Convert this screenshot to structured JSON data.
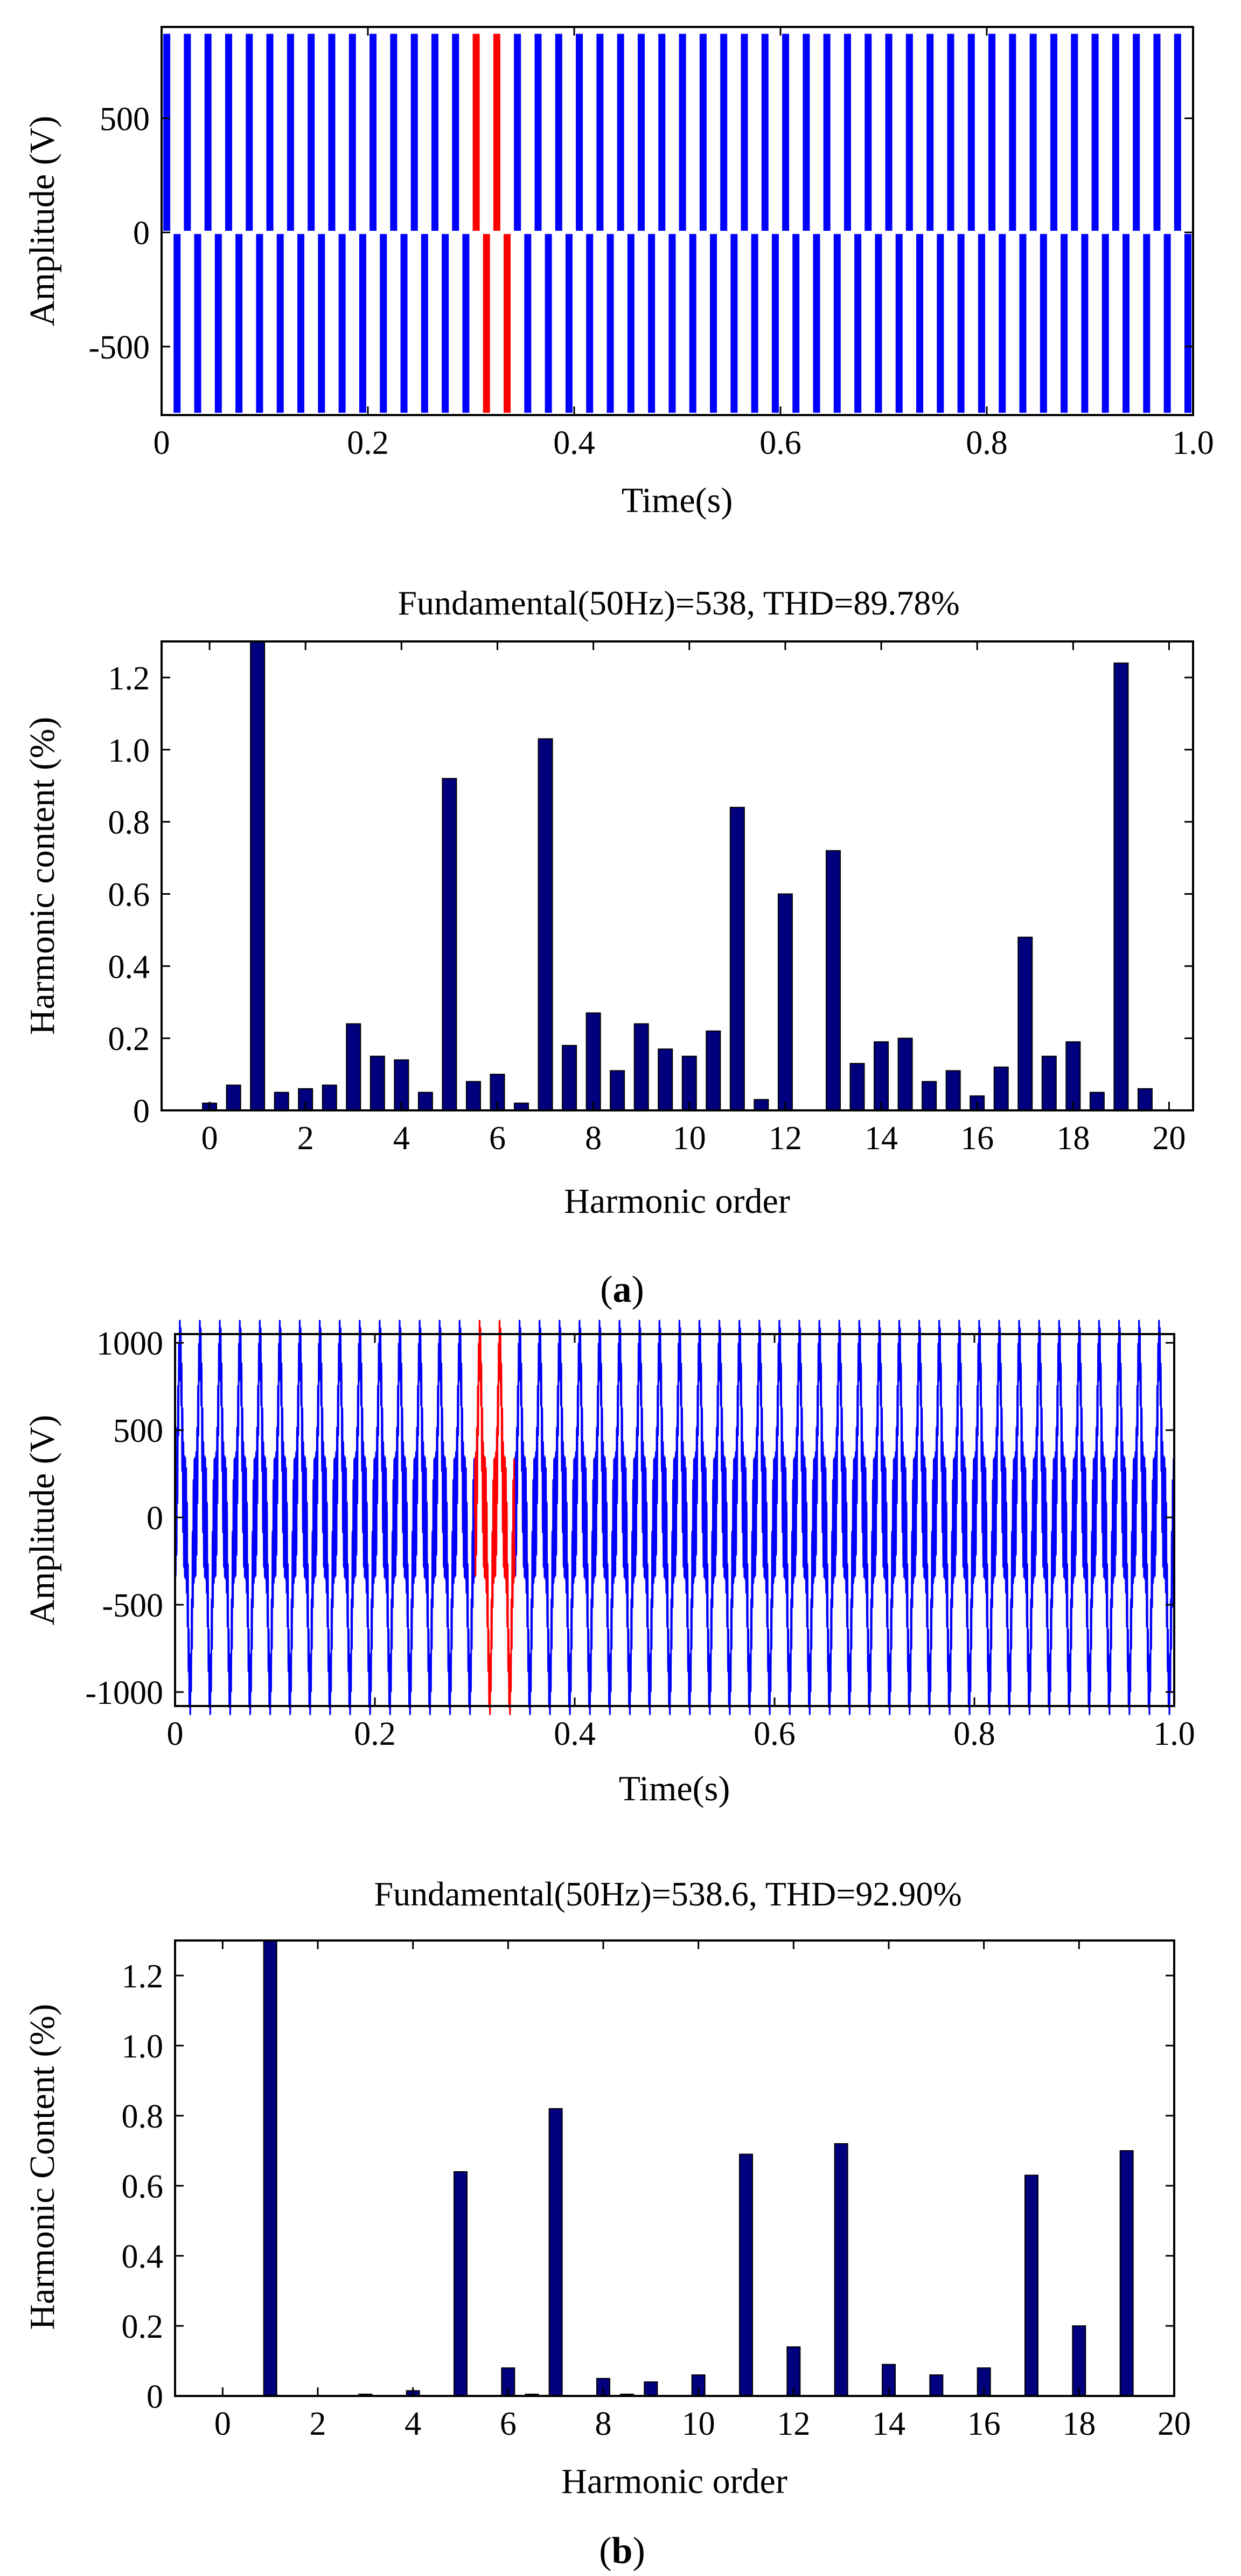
{
  "chart_data": [
    {
      "type": "line",
      "panel": "a",
      "subtype": "waveform",
      "title": "",
      "xlabel": "Time(s)",
      "ylabel": "Amplitude (V)",
      "xlim": [
        0,
        1.0
      ],
      "ylim": [
        -800,
        900
      ],
      "xticks": [
        "0",
        "0.2",
        "0.4",
        "0.6",
        "0.8",
        "1.0"
      ],
      "yticks": [
        "-500",
        "0",
        "500"
      ],
      "fundamental_hz": 50,
      "series": [
        {
          "name": "output voltage",
          "color": "#0000ff",
          "shape": "square-like PWM wave",
          "upper": 870,
          "lower": -790
        },
        {
          "name": "highlighted window",
          "color": "#ff0000",
          "x_start": 0.3,
          "x_end": 0.34
        }
      ]
    },
    {
      "type": "bar",
      "panel": "a",
      "title": "Fundamental(50Hz)=538, THD=89.78%",
      "xlabel": "Harmonic order",
      "ylabel": "Harmonic content (%)",
      "xlim": [
        -1,
        20.5
      ],
      "ylim": [
        0,
        1.3
      ],
      "xticks": [
        "0",
        "2",
        "4",
        "6",
        "8",
        "10",
        "12",
        "14",
        "16",
        "18",
        "20"
      ],
      "yticks": [
        "0",
        "0.2",
        "0.4",
        "0.6",
        "0.8",
        "1.0",
        "1.2"
      ],
      "bar_color": "#00007f",
      "x": [
        0,
        0.5,
        1,
        1.5,
        2,
        2.5,
        3,
        3.5,
        4,
        4.5,
        5,
        5.5,
        6,
        6.5,
        7,
        7.5,
        8,
        8.5,
        9,
        9.5,
        10,
        10.5,
        11,
        11.5,
        12,
        12.5,
        13,
        13.5,
        14,
        14.5,
        15,
        15.5,
        16,
        16.5,
        17,
        17.5,
        18,
        18.5,
        19,
        19.5
      ],
      "values": [
        0.02,
        0.07,
        1.3,
        0.05,
        0.06,
        0.07,
        0.24,
        0.15,
        0.14,
        0.05,
        0.92,
        0.08,
        0.1,
        0.02,
        1.03,
        0.18,
        0.27,
        0.11,
        0.24,
        0.17,
        0.15,
        0.22,
        0.84,
        0.03,
        0.6,
        0.0,
        0.72,
        0.13,
        0.19,
        0.2,
        0.08,
        0.11,
        0.04,
        0.12,
        0.48,
        0.15,
        0.19,
        0.05,
        1.24,
        0.06
      ]
    },
    {
      "type": "line",
      "panel": "b",
      "subtype": "waveform",
      "title": "",
      "xlabel": "Time(s)",
      "ylabel": "Amplitude (V)",
      "xlim": [
        0,
        1.0
      ],
      "ylim": [
        -1080,
        1050
      ],
      "xticks": [
        "0",
        "0.2",
        "0.4",
        "0.6",
        "0.8",
        "1.0"
      ],
      "yticks": [
        "-1000",
        "-500",
        "0",
        "500",
        "1000"
      ],
      "fundamental_hz": 50,
      "series": [
        {
          "name": "output voltage",
          "color": "#0000ff",
          "shape": "multilevel wave",
          "peak": 1000,
          "ripple": 350
        },
        {
          "name": "highlighted window",
          "color": "#ff0000",
          "x_start": 0.3,
          "x_end": 0.34
        }
      ]
    },
    {
      "type": "bar",
      "panel": "b",
      "title": "Fundamental(50Hz)=538.6, THD=92.90%",
      "xlabel": "Harmonic order",
      "ylabel": "Harmonic Content  (%)",
      "xlim": [
        -1,
        20
      ],
      "ylim": [
        0,
        1.3
      ],
      "xticks": [
        "0",
        "2",
        "4",
        "6",
        "8",
        "10",
        "12",
        "14",
        "16",
        "18",
        "20"
      ],
      "yticks": [
        "0",
        "0.2",
        "0.4",
        "0.6",
        "0.8",
        "1.0",
        "1.2"
      ],
      "bar_color": "#00007f",
      "x": [
        1,
        3,
        4,
        5,
        6,
        6.5,
        7,
        8,
        8.5,
        9,
        10,
        11,
        12,
        13,
        14,
        15,
        16,
        17,
        18,
        19
      ],
      "values": [
        1.3,
        0.005,
        0.015,
        0.64,
        0.08,
        0.005,
        0.82,
        0.05,
        0.005,
        0.04,
        0.06,
        0.69,
        0.14,
        0.72,
        0.09,
        0.06,
        0.08,
        0.63,
        0.2,
        0.7
      ]
    }
  ],
  "captions": {
    "a": [
      "(",
      "a",
      ")"
    ],
    "b": [
      "(",
      "b",
      ")"
    ]
  }
}
